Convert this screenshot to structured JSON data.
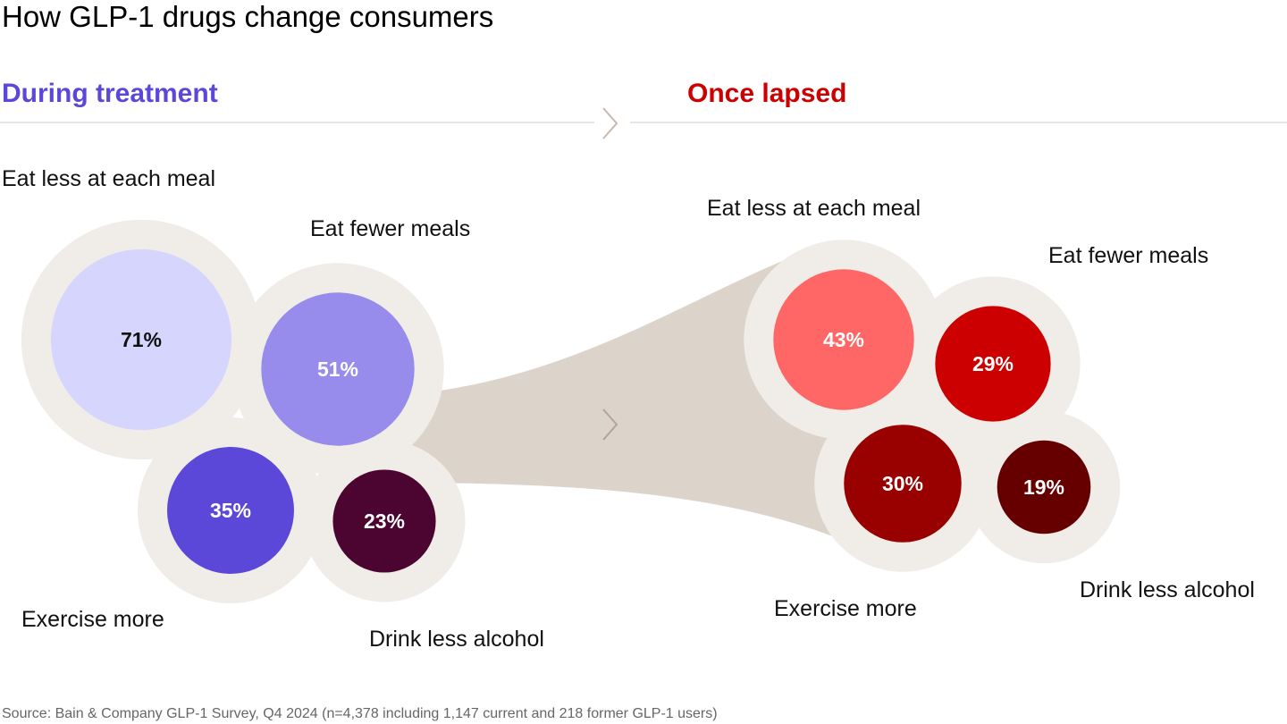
{
  "title": "How GLP-1 drugs change consumers",
  "source": "Source: Bain & Company GLP-1 Survey, Q4 2024 (n=4,378 including 1,147 current and 218 former GLP-1 users)",
  "chart_data": {
    "type": "bubble",
    "groups": [
      {
        "name": "During treatment",
        "color": "#5b48d9",
        "items": [
          {
            "label": "Eat less at each meal",
            "value": 71,
            "text": "71%",
            "color": "#d6d5fd",
            "text_color": "#111111"
          },
          {
            "label": "Eat fewer meals",
            "value": 51,
            "text": "51%",
            "color": "#978cec",
            "text_color": "#ffffff"
          },
          {
            "label": "Exercise more",
            "value": 35,
            "text": "35%",
            "color": "#5b48d9",
            "text_color": "#ffffff"
          },
          {
            "label": "Drink less alcohol",
            "value": 23,
            "text": "23%",
            "color": "#4b0530",
            "text_color": "#ffffff"
          }
        ]
      },
      {
        "name": "Once lapsed",
        "color": "#cc0000",
        "items": [
          {
            "label": "Eat less at each meal",
            "value": 43,
            "text": "43%",
            "color": "#ff6666",
            "text_color": "#ffffff"
          },
          {
            "label": "Eat fewer meals",
            "value": 29,
            "text": "29%",
            "color": "#cc0000",
            "text_color": "#ffffff"
          },
          {
            "label": "Exercise more",
            "value": 30,
            "text": "30%",
            "color": "#990000",
            "text_color": "#ffffff"
          },
          {
            "label": "Drink less alcohol",
            "value": 19,
            "text": "19%",
            "color": "#660000",
            "text_color": "#ffffff"
          }
        ]
      }
    ],
    "halo_color": "#f0ede8",
    "connector_color": "#dcd3cb"
  }
}
